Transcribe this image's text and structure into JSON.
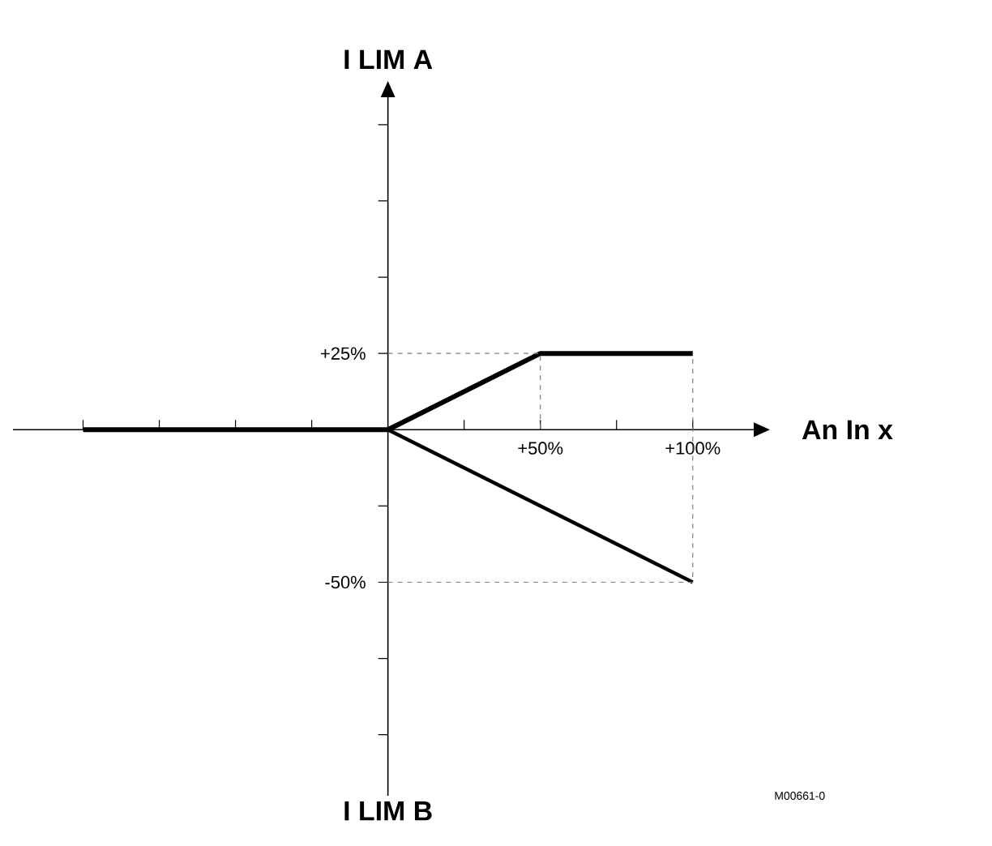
{
  "chart_data": {
    "type": "line",
    "xlabel": "An In x",
    "ylabel": "I LIM A",
    "annotations": [
      "I LIM B",
      "M00661-0"
    ],
    "xlim": [
      -123,
      120
    ],
    "ylim": [
      -120,
      109
    ],
    "xticks": [
      {
        "value": -100,
        "label": null
      },
      {
        "value": -75,
        "label": null
      },
      {
        "value": -50,
        "label": null
      },
      {
        "value": -25,
        "label": null
      },
      {
        "value": 25,
        "label": null
      },
      {
        "value": 50,
        "label": "+50%"
      },
      {
        "value": 75,
        "label": null
      },
      {
        "value": 100,
        "label": "+100%"
      }
    ],
    "yticks": [
      {
        "value": -100,
        "label": null
      },
      {
        "value": -75,
        "label": null
      },
      {
        "value": -50,
        "label": "-50%"
      },
      {
        "value": -25,
        "label": null
      },
      {
        "value": 25,
        "label": "+25%"
      },
      {
        "value": 50,
        "label": null
      },
      {
        "value": 75,
        "label": null
      },
      {
        "value": 100,
        "label": null
      }
    ],
    "series": [
      {
        "color": "#000000",
        "x": [
          -100,
          0,
          50,
          100
        ],
        "values": [
          0,
          0,
          25,
          25
        ],
        "line_style": "solid"
      },
      {
        "color": "#000000",
        "x": [
          0,
          100
        ],
        "values": [
          0,
          -50
        ],
        "line_style": "solid"
      },
      {
        "color": "#808080",
        "x": [
          0,
          50,
          50
        ],
        "values": [
          25,
          25,
          0
        ],
        "line_style": "dashed"
      },
      {
        "color": "#808080",
        "x": [
          0,
          100,
          100
        ],
        "values": [
          -50,
          -50,
          25
        ],
        "line_style": "dashed"
      }
    ]
  }
}
